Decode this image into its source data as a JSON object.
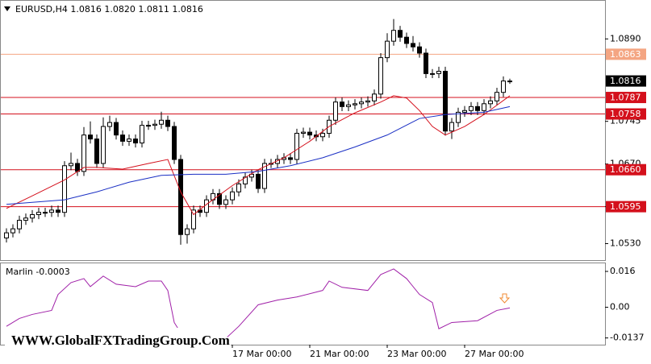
{
  "chart_data": [
    {
      "type": "candlestick",
      "title": "EURUSD,H4  1.0816 1.0820 1.0811 1.0816",
      "watermark": "WWW.GlobalFXTradingGroup.Com",
      "categories": [
        null,
        null,
        null,
        null,
        null,
        null,
        null,
        null,
        null,
        null,
        null,
        null,
        null,
        null,
        null,
        null,
        null,
        null,
        null,
        null,
        null,
        null,
        null,
        null,
        null,
        null,
        null,
        null,
        null,
        null,
        null,
        null,
        null,
        null,
        null,
        "17 Mar 00:00",
        null,
        null,
        null,
        null,
        null,
        null,
        null,
        null,
        null,
        null,
        null,
        "21 Mar 00:00",
        null,
        null,
        null,
        null,
        null,
        null,
        null,
        null,
        null,
        null,
        null,
        "23 Mar 00:00",
        null,
        null,
        null,
        null,
        null,
        null,
        null,
        null,
        null,
        null,
        null,
        "27 Mar 00:00",
        null,
        null,
        null,
        null,
        null,
        null,
        null
      ],
      "open": [
        1.054,
        1.0549,
        1.0556,
        1.0571,
        1.0575,
        1.0581,
        1.0585,
        1.0585,
        1.0589,
        1.0585,
        1.0667,
        1.0671,
        1.0657,
        1.0721,
        1.0714,
        1.0671,
        1.0736,
        1.0743,
        1.0721,
        1.071,
        1.0714,
        1.0707,
        1.0738,
        1.0738,
        1.074,
        1.0747,
        1.0736,
        1.0678,
        1.0546,
        1.0556,
        1.0589,
        1.0585,
        1.0607,
        1.0618,
        1.0599,
        1.0607,
        1.0621,
        1.0635,
        1.0647,
        1.0652,
        1.0627,
        1.0671,
        1.0671,
        1.0678,
        1.0681,
        1.0678,
        1.0724,
        1.0726,
        1.0721,
        1.0718,
        1.0724,
        1.0747,
        1.0779,
        1.0771,
        1.0774,
        1.0776,
        1.0779,
        1.0781,
        1.0793,
        1.0857,
        1.0886,
        1.0905,
        1.0893,
        1.0882,
        1.0876,
        1.0865,
        1.0829,
        1.0829,
        1.0833,
        1.0728,
        1.0743,
        1.0761,
        1.0764,
        1.0771,
        1.0764,
        1.0776,
        1.0781,
        1.0796,
        1.0816
      ],
      "high": [
        1.0557,
        1.0564,
        1.0579,
        1.0583,
        1.0589,
        1.0593,
        1.0593,
        1.0597,
        1.0597,
        1.0675,
        1.069,
        1.0679,
        1.0735,
        1.0745,
        1.0722,
        1.0752,
        1.0755,
        1.0751,
        1.0729,
        1.0722,
        1.0722,
        1.0746,
        1.0746,
        1.0748,
        1.0762,
        1.0755,
        1.0744,
        1.0686,
        1.0564,
        1.0597,
        1.0597,
        1.0615,
        1.0626,
        1.0626,
        1.0615,
        1.0629,
        1.0643,
        1.0655,
        1.066,
        1.066,
        1.0679,
        1.0679,
        1.0686,
        1.0689,
        1.0689,
        1.0732,
        1.0734,
        1.0734,
        1.0729,
        1.0732,
        1.0755,
        1.0787,
        1.0787,
        1.0782,
        1.0784,
        1.0787,
        1.0789,
        1.0801,
        1.0865,
        1.09,
        1.0925,
        1.0913,
        1.0901,
        1.0895,
        1.0884,
        1.0873,
        1.0837,
        1.0841,
        1.0841,
        1.0751,
        1.0769,
        1.0772,
        1.0779,
        1.0779,
        1.0784,
        1.0789,
        1.0804,
        1.0824,
        1.082
      ],
      "low": [
        1.0532,
        1.0541,
        1.0548,
        1.0563,
        1.0567,
        1.0573,
        1.0577,
        1.0577,
        1.0577,
        1.0577,
        1.0659,
        1.0649,
        1.0649,
        1.0706,
        1.0663,
        1.0663,
        1.0728,
        1.0713,
        1.0702,
        1.0702,
        1.0699,
        1.0699,
        1.073,
        1.073,
        1.0732,
        1.0728,
        1.067,
        1.0528,
        1.053,
        1.0548,
        1.0577,
        1.0577,
        1.0599,
        1.0591,
        1.0591,
        1.0599,
        1.0613,
        1.0627,
        1.0639,
        1.0619,
        1.0619,
        1.0663,
        1.0663,
        1.067,
        1.067,
        1.067,
        1.0716,
        1.0713,
        1.071,
        1.071,
        1.0716,
        1.0739,
        1.0763,
        1.0763,
        1.0766,
        1.0768,
        1.0771,
        1.0773,
        1.0785,
        1.0849,
        1.0878,
        1.0885,
        1.0874,
        1.0868,
        1.0857,
        1.0821,
        1.0821,
        1.0821,
        1.072,
        1.0714,
        1.0735,
        1.0753,
        1.0756,
        1.0756,
        1.0756,
        1.0768,
        1.0773,
        1.0788,
        1.0811
      ],
      "close": [
        1.0549,
        1.0556,
        1.0571,
        1.0575,
        1.0581,
        1.0585,
        1.0585,
        1.0589,
        1.0585,
        1.0667,
        1.0671,
        1.0657,
        1.0721,
        1.0714,
        1.0671,
        1.0736,
        1.0743,
        1.0721,
        1.071,
        1.0714,
        1.0707,
        1.0738,
        1.0738,
        1.074,
        1.0747,
        1.0736,
        1.0678,
        1.0546,
        1.0556,
        1.0589,
        1.0585,
        1.0607,
        1.0618,
        1.0599,
        1.0607,
        1.0621,
        1.0635,
        1.0647,
        1.0652,
        1.0627,
        1.0671,
        1.0671,
        1.0678,
        1.0681,
        1.0678,
        1.0724,
        1.0726,
        1.0721,
        1.0718,
        1.0724,
        1.0747,
        1.0779,
        1.0771,
        1.0774,
        1.0776,
        1.0779,
        1.0781,
        1.0793,
        1.0857,
        1.0886,
        1.0905,
        1.0893,
        1.0882,
        1.0876,
        1.0865,
        1.0829,
        1.0829,
        1.0833,
        1.0728,
        1.0743,
        1.0761,
        1.0764,
        1.0771,
        1.0764,
        1.0776,
        1.0781,
        1.0796,
        1.0816,
        1.0816
      ],
      "overlays": [
        {
          "color": "#d4101c",
          "x": [
            0,
            4,
            9,
            12,
            14,
            18,
            22,
            25,
            27,
            29,
            31,
            35,
            39,
            43,
            47,
            50,
            54,
            58,
            60,
            62,
            64,
            66,
            68,
            71,
            74,
            78
          ],
          "values": [
            1.0592,
            1.0614,
            1.0642,
            1.0664,
            1.0664,
            1.0661,
            1.0671,
            1.0678,
            1.0621,
            1.0581,
            1.0599,
            1.0632,
            1.066,
            1.0681,
            1.071,
            1.0736,
            1.076,
            1.0779,
            1.079,
            1.0786,
            1.0764,
            1.0736,
            1.0721,
            1.0736,
            1.0757,
            1.079
          ]
        },
        {
          "color": "#1a2fc4",
          "x": [
            0,
            9,
            14,
            19,
            24,
            29,
            34,
            39,
            44,
            49,
            54,
            59,
            64,
            68,
            74,
            78
          ],
          "values": [
            1.0599,
            1.0607,
            1.0621,
            1.0638,
            1.065,
            1.0652,
            1.0652,
            1.0657,
            1.0667,
            1.0681,
            1.07,
            1.0721,
            1.075,
            1.0757,
            1.0761,
            1.0771
          ]
        }
      ],
      "levels": [
        {
          "value": 1.0863,
          "color": "#f4a582"
        },
        {
          "value": 1.0787,
          "color": "#d4101c"
        },
        {
          "value": 1.0758,
          "color": "#d4101c"
        },
        {
          "value": 1.066,
          "label": "1.0660",
          "color": "#d4101c"
        },
        {
          "value": 1.0595,
          "color": "#d4101c"
        }
      ],
      "current_price": 1.0816,
      "ylim": [
        1.0501,
        1.0957
      ],
      "yticks": [
        {
          "value": 1.089,
          "label": "1.0890"
        },
        1.0745,
        {
          "value": 1.067,
          "label": "1.0670"
        },
        1.0595,
        {
          "value": 1.053,
          "label": "1.0530"
        }
      ]
    },
    {
      "type": "line",
      "title": "Marlin -0.0003",
      "color": "#a020a8",
      "x": [
        0,
        2,
        4,
        7,
        8,
        10,
        12,
        13,
        15,
        17,
        20,
        22,
        24,
        25,
        26,
        28,
        34,
        36,
        39,
        42,
        45,
        49,
        50,
        52,
        56,
        58,
        60,
        62,
        64,
        66,
        67,
        69,
        73,
        76,
        78
      ],
      "values": [
        -0.0085,
        -0.005,
        -0.0032,
        -0.0014,
        0.0057,
        0.011,
        0.0128,
        0.0092,
        0.0139,
        0.0103,
        0.0092,
        0.0117,
        0.0117,
        0.0075,
        -0.0068,
        -0.016,
        -0.0139,
        -0.0085,
        0.0011,
        0.0032,
        0.0046,
        0.0075,
        0.0117,
        0.0089,
        0.0075,
        0.0146,
        0.0171,
        0.0128,
        0.0057,
        0.0021,
        -0.0096,
        -0.0068,
        -0.006,
        -0.0014,
        -0.0003
      ],
      "ylim": [
        -0.0167,
        0.0196
      ],
      "yticks": [
        0.016,
        {
          "value": 0,
          "label": "0.00"
        },
        -0.0137
      ]
    }
  ]
}
